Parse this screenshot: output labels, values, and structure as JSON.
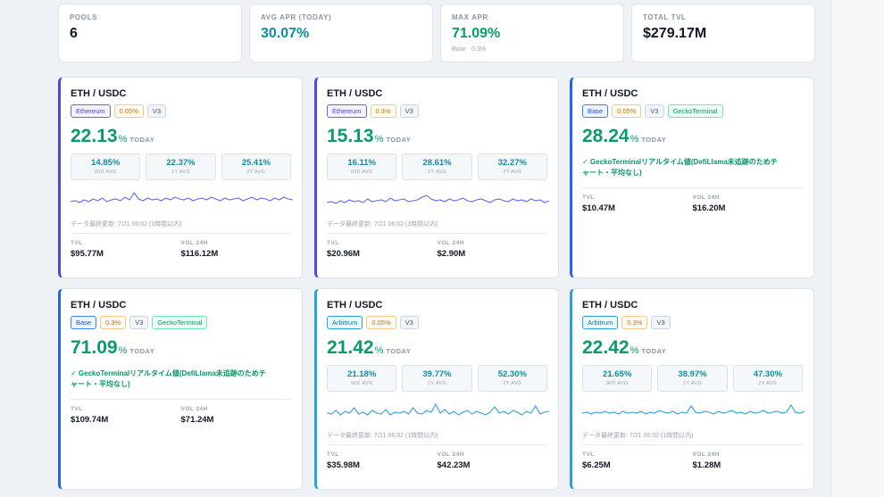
{
  "stats": [
    {
      "label": "POOLS",
      "value": "6",
      "sub": ""
    },
    {
      "label": "AVG APR (TODAY)",
      "value": "30.07%",
      "sub": ""
    },
    {
      "label": "MAX APR",
      "value": "71.09%",
      "sub": "Base · 0.3%"
    },
    {
      "label": "TOTAL TVL",
      "value": "$279.17M",
      "sub": ""
    }
  ],
  "labels": {
    "today": "TODAY",
    "avg90": "90D AVG",
    "avg1y": "1Y AVG",
    "avg2y": "2Y AVG",
    "tvl": "TVL",
    "vol24h": "VOL 24H",
    "pct": "%",
    "gecko_note": "✓ GeckoTerminalリアルタイム値(DefiLlama未追跡のためチャート・平均なし)"
  },
  "cards": [
    {
      "pair": "ETH / USDC",
      "chain": "Ethereum",
      "fee": "0.05%",
      "version": "V3",
      "source": "",
      "apr": "22.13",
      "avg90": "14.85%",
      "avg1y": "22.37%",
      "avg2y": "25.41%",
      "updated": "データ最終更新: 7/21 06:02 (1時間以内)",
      "tvl": "$95.77M",
      "vol": "$116.12M",
      "line_color": "#6366f1"
    },
    {
      "pair": "ETH / USDC",
      "chain": "Ethereum",
      "fee": "0.3%",
      "version": "V3",
      "source": "",
      "apr": "15.13",
      "avg90": "16.11%",
      "avg1y": "28.61%",
      "avg2y": "32.27%",
      "updated": "データ最終更新: 7/21 06:02 (1時間以内)",
      "tvl": "$20.96M",
      "vol": "$2.90M",
      "line_color": "#6366f1"
    },
    {
      "pair": "ETH / USDC",
      "chain": "Base",
      "fee": "0.05%",
      "version": "V3",
      "source": "GeckoTerminal",
      "apr": "28.24",
      "tvl": "$10.47M",
      "vol": "$16.20M"
    },
    {
      "pair": "ETH / USDC",
      "chain": "Base",
      "fee": "0.3%",
      "version": "V3",
      "source": "GeckoTerminal",
      "apr": "71.09",
      "tvl": "$109.74M",
      "vol": "$71.24M"
    },
    {
      "pair": "ETH / USDC",
      "chain": "Arbitrum",
      "fee": "0.05%",
      "version": "V3",
      "source": "",
      "apr": "21.42",
      "avg90": "21.18%",
      "avg1y": "39.77%",
      "avg2y": "52.30%",
      "updated": "データ最終更新: 7/21 06:02 (1時間以内)",
      "tvl": "$35.98M",
      "vol": "$42.23M",
      "line_color": "#2aa2d6"
    },
    {
      "pair": "ETH / USDC",
      "chain": "Arbitrum",
      "fee": "0.3%",
      "version": "V3",
      "source": "",
      "apr": "22.42",
      "avg90": "21.65%",
      "avg1y": "38.97%",
      "avg2y": "47.30%",
      "updated": "データ最終更新: 7/21 06:02 (1時間以内)",
      "tvl": "$6.25M",
      "vol": "$1.28M",
      "line_color": "#2aa2d6"
    }
  ]
}
